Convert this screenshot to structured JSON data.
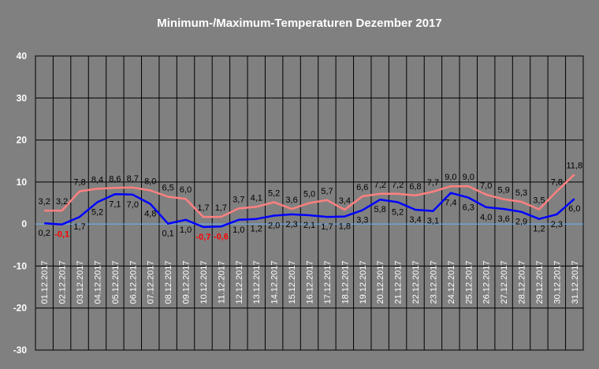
{
  "chart_data": {
    "type": "line",
    "title": "Minimum-/Maximum-Temperaturen Dezember 2017",
    "ylim": [
      -30,
      40
    ],
    "yticks": [
      40,
      30,
      20,
      10,
      0,
      -10,
      -20,
      -30
    ],
    "grid": true,
    "categories": [
      "01.12.2017",
      "02.12.2017",
      "03.12.2017",
      "04.12.2017",
      "05.12.2017",
      "06.12.2017",
      "07.12.2017",
      "08.12.2017",
      "09.12.2017",
      "10.12.2017",
      "11.12.2017",
      "12.12.2017",
      "13.12.2017",
      "14.12.2017",
      "15.12.2017",
      "16.12.2017",
      "17.12.2017",
      "18.12.2017",
      "19.12.2017",
      "20.12.2017",
      "21.12.2017",
      "22.12.2017",
      "23.12.2017",
      "24.12.2017",
      "25.12.2017",
      "26.12.2017",
      "27.12.2017",
      "28.12.2017",
      "29.12.2017",
      "30.12.2017",
      "31.12.2017"
    ],
    "series": [
      {
        "key": "max",
        "color": "#ff8080",
        "values": [
          3.2,
          3.2,
          7.8,
          8.4,
          8.6,
          8.7,
          8.0,
          6.5,
          6.0,
          1.7,
          1.7,
          3.7,
          4.1,
          5.2,
          3.6,
          5.0,
          5.7,
          3.4,
          6.6,
          7.2,
          7.2,
          6.8,
          7.7,
          9.0,
          9.0,
          7.0,
          5.9,
          5.3,
          3.5,
          7.8,
          11.8
        ],
        "labels": [
          "3,2",
          "3,2",
          "7,8",
          "8,4",
          "8,6",
          "8,7",
          "8,0",
          "6,5",
          "6,0",
          "1,7",
          "1,7",
          "3,7",
          "4,1",
          "5,2",
          "3,6",
          "5,0",
          "5,7",
          "3,4",
          "6,6",
          "7,2",
          "7,2",
          "6,8",
          "7,7",
          "9,0",
          "9,0",
          "7,0",
          "5,9",
          "5,3",
          "3,5",
          "7,8",
          "11,8"
        ]
      },
      {
        "key": "min",
        "color": "#0000ff",
        "values": [
          0.2,
          -0.1,
          1.7,
          5.2,
          7.1,
          7.0,
          4.8,
          0.1,
          1.0,
          -0.7,
          -0.6,
          1.0,
          1.2,
          2.0,
          2.3,
          2.1,
          1.7,
          1.8,
          3.3,
          5.8,
          5.2,
          3.4,
          3.1,
          7.4,
          6.3,
          4.0,
          3.6,
          2.9,
          1.2,
          2.3,
          6.0
        ],
        "labels": [
          "0,2",
          "-0,1",
          "1,7",
          "5,2",
          "7,1",
          "7,0",
          "4,8",
          "0,1",
          "1,0",
          "-0,7",
          "-0,6",
          "1,0",
          "1,2",
          "2,0",
          "2,3",
          "2,1",
          "1,7",
          "1,8",
          "3,3",
          "5,8",
          "5,2",
          "3,4",
          "3,1",
          "7,4",
          "6,3",
          "4,0",
          "3,6",
          "2,9",
          "1,2",
          "2,3",
          "6,0"
        ]
      }
    ],
    "zero_line_color": "#66b3ff",
    "negative_label_color": "#ff0000"
  }
}
